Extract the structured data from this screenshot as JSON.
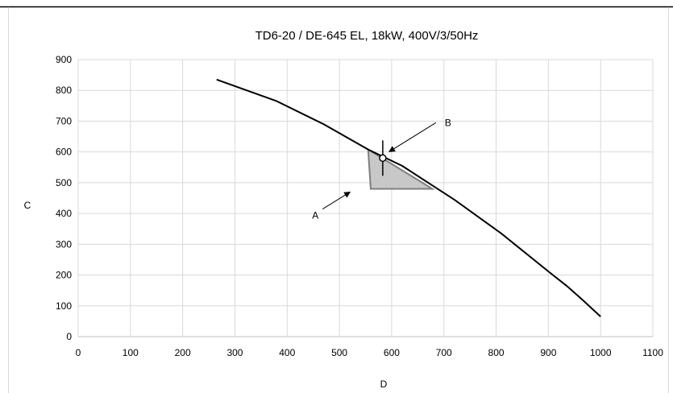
{
  "chart_data": {
    "type": "line",
    "title": "TD6-20 / DE-645 EL, 18kW, 400V/3/50Hz",
    "xlabel": "D",
    "ylabel": "C",
    "xlim": [
      0,
      1100
    ],
    "ylim": [
      0,
      900
    ],
    "xticks": [
      "0",
      "100",
      "200",
      "300",
      "400",
      "500",
      "600",
      "700",
      "800",
      "900",
      "1000",
      "1100"
    ],
    "yticks": [
      "0",
      "100",
      "200",
      "300",
      "400",
      "500",
      "600",
      "700",
      "800",
      "900"
    ],
    "grid": true,
    "series": [
      {
        "x": [
          265,
          380,
          470,
          555,
          620,
          720,
          810,
          905,
          935,
          965,
          1000
        ],
        "y": [
          835,
          765,
          690,
          608,
          555,
          445,
          335,
          205,
          165,
          120,
          65
        ]
      }
    ],
    "shaded_region": {
      "x": [
        555,
        560,
        678,
        555
      ],
      "y": [
        608,
        480,
        480,
        608
      ]
    },
    "operating_point": {
      "x": 583,
      "y": 580
    },
    "annotations": [
      {
        "label": "A",
        "x": 528,
        "y": 480
      },
      {
        "label": "B",
        "x": 583,
        "y": 580
      }
    ],
    "colors": {
      "line": "#000000",
      "grid": "#d9d9d9",
      "shade": "#c8c8c8",
      "shade_edge": "#7f7f7f"
    }
  }
}
